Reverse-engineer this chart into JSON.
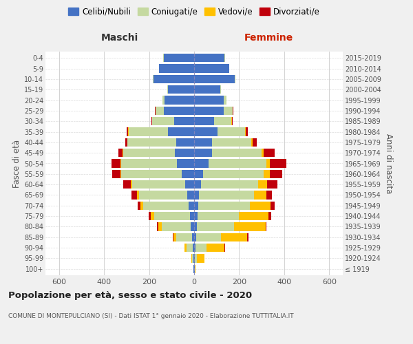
{
  "age_groups": [
    "100+",
    "95-99",
    "90-94",
    "85-89",
    "80-84",
    "75-79",
    "70-74",
    "65-69",
    "60-64",
    "55-59",
    "50-54",
    "45-49",
    "40-44",
    "35-39",
    "30-34",
    "25-29",
    "20-24",
    "15-19",
    "10-14",
    "5-9",
    "0-4"
  ],
  "birth_years": [
    "≤ 1919",
    "1920-1924",
    "1925-1929",
    "1930-1934",
    "1935-1939",
    "1940-1944",
    "1945-1949",
    "1950-1954",
    "1955-1959",
    "1960-1964",
    "1965-1969",
    "1970-1974",
    "1975-1979",
    "1980-1984",
    "1985-1989",
    "1990-1994",
    "1995-1999",
    "2000-2004",
    "2005-2009",
    "2010-2014",
    "2015-2019"
  ],
  "maschi": {
    "celibi": [
      2,
      2,
      5,
      8,
      15,
      18,
      25,
      30,
      40,
      55,
      75,
      85,
      80,
      115,
      90,
      135,
      130,
      115,
      180,
      155,
      135
    ],
    "coniugati": [
      2,
      8,
      30,
      70,
      130,
      160,
      200,
      215,
      235,
      270,
      250,
      230,
      215,
      175,
      95,
      35,
      10,
      5,
      2,
      2,
      2
    ],
    "vedovi": [
      0,
      3,
      8,
      15,
      15,
      15,
      12,
      8,
      5,
      3,
      3,
      2,
      2,
      2,
      2,
      2,
      0,
      0,
      0,
      0,
      0
    ],
    "divorziati": [
      0,
      0,
      0,
      3,
      5,
      8,
      15,
      25,
      35,
      35,
      40,
      18,
      10,
      8,
      3,
      3,
      0,
      0,
      0,
      0,
      0
    ]
  },
  "femmine": {
    "nubili": [
      2,
      2,
      5,
      10,
      12,
      15,
      18,
      20,
      30,
      40,
      65,
      80,
      80,
      105,
      90,
      130,
      130,
      115,
      180,
      155,
      135
    ],
    "coniugate": [
      2,
      10,
      50,
      110,
      165,
      185,
      230,
      245,
      255,
      270,
      255,
      220,
      175,
      120,
      75,
      40,
      15,
      5,
      2,
      2,
      2
    ],
    "vedove": [
      2,
      35,
      80,
      115,
      140,
      130,
      90,
      55,
      40,
      25,
      15,
      8,
      5,
      3,
      2,
      2,
      0,
      0,
      0,
      0,
      0
    ],
    "divorziate": [
      0,
      0,
      2,
      5,
      5,
      12,
      20,
      25,
      45,
      55,
      75,
      50,
      18,
      10,
      5,
      3,
      0,
      0,
      0,
      0,
      0
    ]
  },
  "colors": {
    "celibi": "#4472c4",
    "coniugati": "#c5d9a0",
    "vedovi": "#ffc000",
    "divorziati": "#c0000b"
  },
  "legend_labels": [
    "Celibi/Nubili",
    "Coniugati/e",
    "Vedovi/e",
    "Divorziati/e"
  ],
  "title": "Popolazione per età, sesso e stato civile - 2020",
  "subtitle": "COMUNE DI MONTEPULCIANO (SI) - Dati ISTAT 1° gennaio 2020 - Elaborazione TUTTITALIA.IT",
  "ylabel_left": "Fasce di età",
  "ylabel_right": "Anni di nascita",
  "xlabel_left": "Maschi",
  "xlabel_right": "Femmine",
  "xlim": 660,
  "bg_color": "#f0f0f0",
  "plot_bg": "#ffffff",
  "grid_color": "#cccccc"
}
